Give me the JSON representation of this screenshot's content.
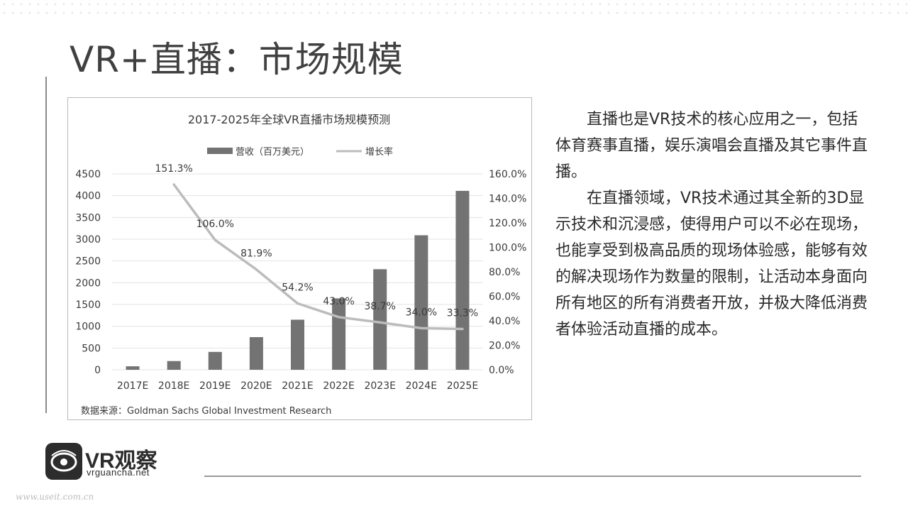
{
  "slide": {
    "title": "VR+直播：市场规模",
    "paragraphs": [
      "直播也是VR技术的核心应用之一，包括体育赛事直播，娱乐演唱会直播及其它事件直播。",
      "在直播领域，VR技术通过其全新的3D显示技术和沉浸感，使得用户可以不必在现场，也能享受到极高品质的现场体验感，能够有效的解决现场作为数量的限制，让活动本身面向所有地区的所有消费者开放，并极大降低消费者体验活动直播的成本。"
    ]
  },
  "logo": {
    "title": "VR观察",
    "url": "vrguancha.net",
    "icon": "vr-eye-icon"
  },
  "watermark": "www.useit.com.cn",
  "colors": {
    "bar": "#737373",
    "line": "#bcbcbc",
    "text": "#3a3a3a"
  },
  "chart_data": {
    "type": "bar",
    "title": "2017-2025年全球VR直播市场规模预测",
    "categories": [
      "2017E",
      "2018E",
      "2019E",
      "2020E",
      "2021E",
      "2022E",
      "2023E",
      "2024E",
      "2025E"
    ],
    "series": [
      {
        "name": "营收（百万美元）",
        "type": "bar",
        "axis": "left",
        "values": [
          80,
          200,
          410,
          750,
          1150,
          1640,
          2310,
          3090,
          4110
        ]
      },
      {
        "name": "增长率",
        "type": "line",
        "axis": "right",
        "values": [
          null,
          151.3,
          106.0,
          81.9,
          54.2,
          43.0,
          38.7,
          34.0,
          33.3
        ],
        "labels": [
          "",
          "151.3%",
          "106.0%",
          "81.9%",
          "54.2%",
          "43.0%",
          "38.7%",
          "34.0%",
          "33.3%"
        ]
      }
    ],
    "y_left": {
      "ylim": [
        0,
        4500
      ],
      "ticks": [
        "0",
        "500",
        "1000",
        "1500",
        "2000",
        "2500",
        "3000",
        "3500",
        "4000",
        "4500"
      ]
    },
    "y_right": {
      "ylim": [
        0,
        160
      ],
      "ticks": [
        "0.0%",
        "20.0%",
        "40.0%",
        "60.0%",
        "80.0%",
        "100.0%",
        "120.0%",
        "140.0%",
        "160.0%"
      ]
    },
    "legend_position": "top-center",
    "grid": true,
    "source": "数据来源：Goldman Sachs Global Investment Research"
  }
}
